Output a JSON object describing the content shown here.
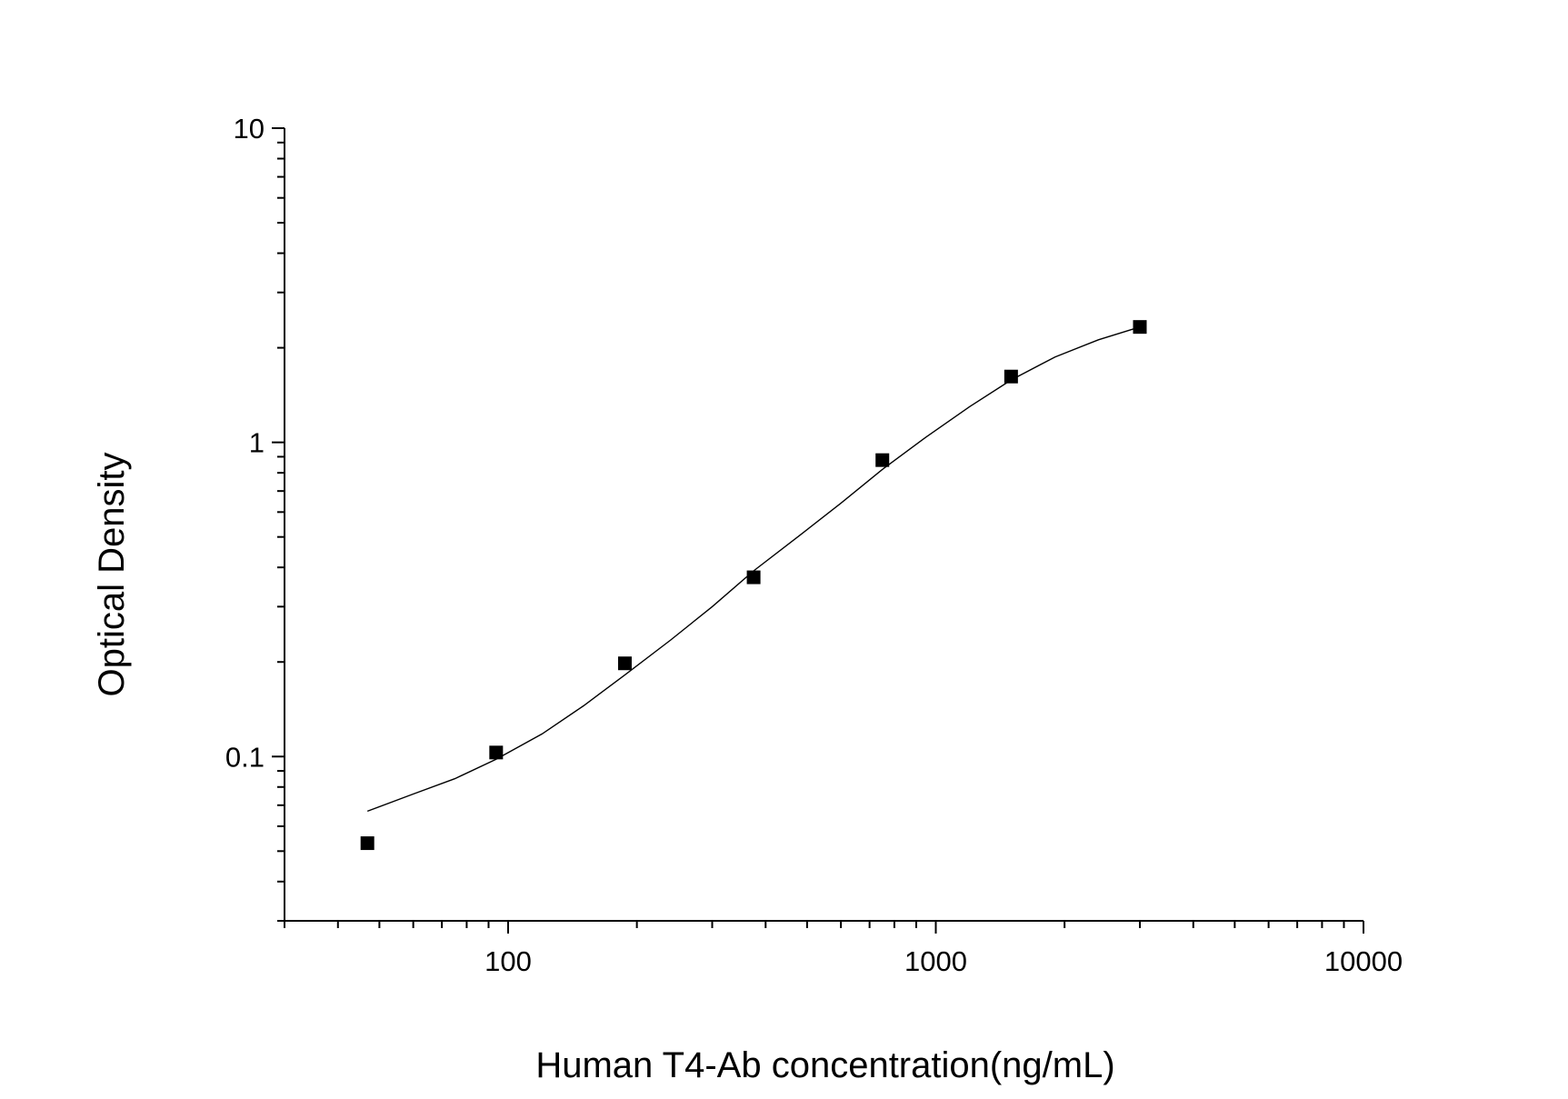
{
  "chart_data": {
    "type": "scatter",
    "title": "",
    "xlabel": "Human T4-Ab concentration(ng/mL)",
    "ylabel": "Optical Density",
    "x_scale": "log",
    "y_scale": "log",
    "xlim": [
      30,
      10000
    ],
    "ylim": [
      0.03,
      10
    ],
    "x_ticks": [
      {
        "value": 100,
        "label": "100"
      },
      {
        "value": 1000,
        "label": "1000"
      },
      {
        "value": 10000,
        "label": "10000"
      }
    ],
    "y_ticks": [
      {
        "value": 0.1,
        "label": "0.1"
      },
      {
        "value": 1,
        "label": "1"
      },
      {
        "value": 10,
        "label": "10"
      }
    ],
    "grid": false,
    "legend": "none",
    "series": [
      {
        "kind": "points",
        "marker": "square",
        "color": "#000000",
        "x": [
          46.875,
          93.75,
          187.5,
          375,
          750,
          1500,
          3000
        ],
        "y": [
          0.053,
          0.103,
          0.198,
          0.372,
          0.878,
          1.62,
          2.33
        ]
      },
      {
        "kind": "fitted-curve",
        "color": "#000000",
        "x": [
          46.875,
          60,
          75,
          93.75,
          120,
          150,
          187.5,
          240,
          300,
          375,
          480,
          600,
          750,
          950,
          1200,
          1500,
          1900,
          2400,
          3000
        ],
        "y": [
          0.067,
          0.076,
          0.085,
          0.098,
          0.118,
          0.145,
          0.182,
          0.235,
          0.3,
          0.39,
          0.505,
          0.64,
          0.82,
          1.04,
          1.3,
          1.58,
          1.87,
          2.12,
          2.33
        ]
      }
    ]
  }
}
